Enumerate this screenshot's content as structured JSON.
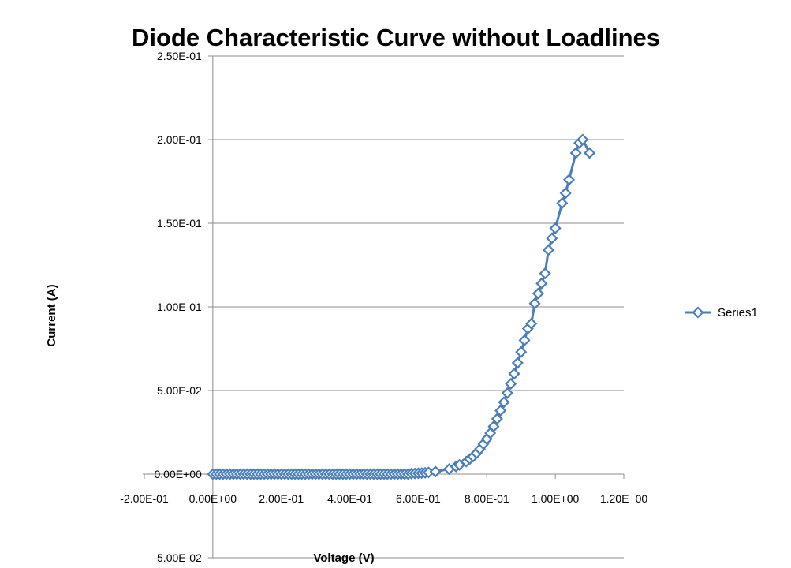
{
  "chart_data": {
    "type": "scatter",
    "title": "Diode Characteristic Curve without Loadlines",
    "xlabel": "Voltage (V)",
    "ylabel": "Current (A)",
    "xlim": [
      -0.2,
      1.2
    ],
    "ylim": [
      -0.05,
      0.25
    ],
    "x_ticks": [
      -0.2,
      0.0,
      0.2,
      0.4,
      0.6,
      0.8,
      1.0,
      1.2
    ],
    "x_tick_labels": [
      "-2.00E-01",
      "0.00E+00",
      "2.00E-01",
      "4.00E-01",
      "6.00E-01",
      "8.00E-01",
      "1.00E+00",
      "1.20E+00"
    ],
    "y_ticks": [
      -0.05,
      0.0,
      0.05,
      0.1,
      0.15,
      0.2,
      0.25
    ],
    "y_tick_labels": [
      "-5.00E-02",
      "0.00E+00",
      "5.00E-02",
      "1.00E-01",
      "1.50E-01",
      "2.00E-01",
      "2.50E-01"
    ],
    "grid": true,
    "legend_position": "right",
    "series_color": "#4a7ebb",
    "series": [
      {
        "name": "Series1",
        "marker": "diamond",
        "x": [
          0.0,
          0.01,
          0.02,
          0.03,
          0.04,
          0.05,
          0.06,
          0.07,
          0.08,
          0.09,
          0.1,
          0.11,
          0.12,
          0.13,
          0.14,
          0.15,
          0.16,
          0.17,
          0.18,
          0.19,
          0.2,
          0.21,
          0.22,
          0.23,
          0.24,
          0.25,
          0.26,
          0.27,
          0.28,
          0.29,
          0.3,
          0.31,
          0.32,
          0.33,
          0.34,
          0.35,
          0.36,
          0.37,
          0.38,
          0.39,
          0.4,
          0.41,
          0.42,
          0.43,
          0.44,
          0.45,
          0.46,
          0.47,
          0.48,
          0.49,
          0.5,
          0.51,
          0.52,
          0.53,
          0.54,
          0.55,
          0.56,
          0.57,
          0.58,
          0.59,
          0.6,
          0.61,
          0.62,
          0.63,
          0.65,
          0.69,
          0.71,
          0.72,
          0.74,
          0.75,
          0.76,
          0.77,
          0.78,
          0.79,
          0.8,
          0.81,
          0.82,
          0.83,
          0.84,
          0.85,
          0.86,
          0.87,
          0.88,
          0.89,
          0.9,
          0.91,
          0.92,
          0.93,
          0.94,
          0.95,
          0.96,
          0.97,
          0.98,
          0.99,
          1.0,
          1.02,
          1.03,
          1.04,
          1.06,
          1.07,
          1.08,
          1.1
        ],
        "y": [
          0,
          0,
          0,
          0,
          0,
          0,
          0,
          0,
          0,
          0,
          0,
          0,
          0,
          0,
          0,
          0,
          0,
          0,
          0,
          0,
          0,
          0,
          0,
          0,
          0,
          0,
          0,
          0,
          0,
          0,
          0,
          0,
          0,
          0,
          0,
          0,
          0,
          0,
          0,
          0,
          0,
          0,
          0,
          0,
          0,
          0,
          0,
          0,
          0,
          0,
          0,
          0,
          0,
          0,
          0,
          0,
          0,
          0,
          0.0003,
          0.0004,
          0.0005,
          0.0006,
          0.0008,
          0.001,
          0.0015,
          0.003,
          0.0045,
          0.0055,
          0.0075,
          0.009,
          0.0105,
          0.0125,
          0.015,
          0.018,
          0.021,
          0.0245,
          0.0285,
          0.033,
          0.038,
          0.043,
          0.0485,
          0.054,
          0.06,
          0.0665,
          0.073,
          0.08,
          0.087,
          0.09,
          0.102,
          0.108,
          0.114,
          0.12,
          0.134,
          0.141,
          0.147,
          0.162,
          0.168,
          0.176,
          0.192,
          0.198,
          0.2,
          0.192
        ]
      }
    ]
  }
}
